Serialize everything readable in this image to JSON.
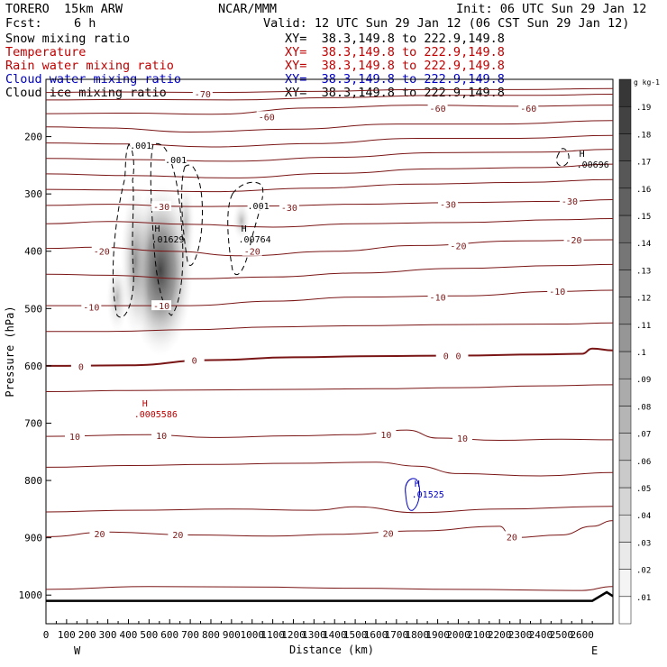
{
  "header": {
    "model": "TORERO  15km ARW",
    "center": "NCAR/MMM",
    "init": "Init: 06 UTC Sun 29 Jan 12",
    "fcst_label": "Fcst:",
    "fcst_value": "6 h",
    "valid": "Valid: 12 UTC Sun 29 Jan 12 (06 CST Sun 29 Jan 12)",
    "fields": [
      {
        "name": "Snow mixing ratio",
        "xy": "XY=  38.3,149.8 to 222.9,149.8",
        "color": "#000000"
      },
      {
        "name": "Temperature",
        "xy": "XY=  38.3,149.8 to 222.9,149.8",
        "color": "#c00000"
      },
      {
        "name": "Rain water mixing ratio",
        "xy": "XY=  38.3,149.8 to 222.9,149.8",
        "color": "#c00000"
      },
      {
        "name": "Cloud water mixing ratio",
        "xy": "XY=  38.3,149.8 to 222.9,149.8",
        "color": "#0000c0"
      },
      {
        "name": "Cloud ice mixing ratio",
        "xy": "XY=  38.3,149.8 to 222.9,149.8",
        "color": "#000000"
      }
    ]
  },
  "colorbar": {
    "unit": "g kg-1",
    "levels": [
      ".01",
      ".02",
      ".03",
      ".04",
      ".05",
      ".06",
      ".07",
      ".08",
      ".09",
      ".1",
      ".11",
      ".12",
      ".13",
      ".14",
      ".15",
      ".16",
      ".17",
      ".18",
      ".19"
    ]
  },
  "chart_data": {
    "type": "contour",
    "xlabel": "Distance (km)",
    "ylabel": "Pressure (hPa)",
    "xlim": [
      0,
      2750
    ],
    "ylim": [
      1050,
      100
    ],
    "x_ticks": [
      0,
      100,
      200,
      300,
      400,
      500,
      600,
      700,
      800,
      900,
      1000,
      1100,
      1200,
      1300,
      1400,
      1500,
      1600,
      1700,
      1800,
      1900,
      2000,
      2100,
      2200,
      2300,
      2400,
      2500,
      2600
    ],
    "y_ticks": [
      200,
      300,
      400,
      500,
      600,
      700,
      800,
      900,
      1000
    ],
    "x_end_labels": {
      "left": "W",
      "right": "E"
    },
    "temperature_contours": [
      {
        "value": -70,
        "points": [
          [
            0,
            123
          ],
          [
            300,
            122
          ],
          [
            800,
            123
          ],
          [
            1300,
            121
          ],
          [
            1800,
            118
          ],
          [
            2300,
            118
          ],
          [
            2750,
            116
          ]
        ]
      },
      {
        "value": -65,
        "points": [
          [
            0,
            136
          ],
          [
            400,
            135
          ],
          [
            900,
            136
          ],
          [
            1400,
            132
          ],
          [
            1900,
            128
          ],
          [
            2400,
            128
          ],
          [
            2750,
            126
          ]
        ]
      },
      {
        "value": -60,
        "points": [
          [
            0,
            160
          ],
          [
            400,
            159
          ],
          [
            800,
            161
          ],
          [
            1300,
            150
          ],
          [
            1800,
            145
          ],
          [
            2300,
            147
          ],
          [
            2750,
            145
          ]
        ]
      },
      {
        "value": -55,
        "points": [
          [
            0,
            183
          ],
          [
            300,
            185
          ],
          [
            700,
            192
          ],
          [
            1200,
            187
          ],
          [
            1700,
            178
          ],
          [
            2200,
            178
          ],
          [
            2750,
            172
          ]
        ]
      },
      {
        "value": -50,
        "points": [
          [
            0,
            211
          ],
          [
            400,
            213
          ],
          [
            800,
            218
          ],
          [
            1300,
            212
          ],
          [
            1800,
            203
          ],
          [
            2300,
            203
          ],
          [
            2750,
            198
          ]
        ]
      },
      {
        "value": -45,
        "points": [
          [
            0,
            238
          ],
          [
            400,
            240
          ],
          [
            900,
            243
          ],
          [
            1400,
            236
          ],
          [
            1900,
            228
          ],
          [
            2400,
            227
          ],
          [
            2750,
            222
          ]
        ]
      },
      {
        "value": -40,
        "points": [
          [
            0,
            265
          ],
          [
            400,
            268
          ],
          [
            900,
            272
          ],
          [
            1400,
            264
          ],
          [
            1900,
            256
          ],
          [
            2400,
            254
          ],
          [
            2750,
            248
          ]
        ]
      },
      {
        "value": -35,
        "points": [
          [
            0,
            292
          ],
          [
            300,
            293
          ],
          [
            800,
            296
          ],
          [
            1300,
            290
          ],
          [
            1800,
            283
          ],
          [
            2300,
            280
          ],
          [
            2750,
            275
          ]
        ]
      },
      {
        "value": -30,
        "points": [
          [
            0,
            320
          ],
          [
            300,
            318
          ],
          [
            700,
            322
          ],
          [
            1100,
            321
          ],
          [
            1500,
            318
          ],
          [
            2000,
            315
          ],
          [
            2500,
            313
          ],
          [
            2750,
            310
          ]
        ]
      },
      {
        "value": -25,
        "points": [
          [
            0,
            352
          ],
          [
            300,
            348
          ],
          [
            700,
            353
          ],
          [
            1100,
            358
          ],
          [
            1500,
            352
          ],
          [
            2000,
            350
          ],
          [
            2500,
            345
          ],
          [
            2750,
            343
          ]
        ]
      },
      {
        "value": -20,
        "points": [
          [
            0,
            395
          ],
          [
            250,
            393
          ],
          [
            600,
            400
          ],
          [
            950,
            408
          ],
          [
            1400,
            400
          ],
          [
            1800,
            390
          ],
          [
            2300,
            382
          ],
          [
            2750,
            380
          ]
        ]
      },
      {
        "value": -15,
        "points": [
          [
            0,
            440
          ],
          [
            300,
            442
          ],
          [
            700,
            448
          ],
          [
            1100,
            445
          ],
          [
            1500,
            438
          ],
          [
            2000,
            430
          ],
          [
            2500,
            425
          ],
          [
            2750,
            423
          ]
        ]
      },
      {
        "value": -10,
        "points": [
          [
            0,
            495
          ],
          [
            300,
            495
          ],
          [
            700,
            495
          ],
          [
            1100,
            487
          ],
          [
            1500,
            480
          ],
          [
            2000,
            478
          ],
          [
            2500,
            470
          ],
          [
            2750,
            468
          ]
        ]
      },
      {
        "value": -5,
        "points": [
          [
            0,
            540
          ],
          [
            300,
            540
          ],
          [
            700,
            537
          ],
          [
            1100,
            532
          ],
          [
            1500,
            530
          ],
          [
            2000,
            528
          ],
          [
            2500,
            527
          ],
          [
            2750,
            525
          ]
        ]
      },
      {
        "value": 0,
        "points": [
          [
            0,
            600
          ],
          [
            400,
            599
          ],
          [
            800,
            590
          ],
          [
            1200,
            585
          ],
          [
            1600,
            583
          ],
          [
            2000,
            582
          ],
          [
            2400,
            580
          ],
          [
            2600,
            579
          ],
          [
            2650,
            570
          ],
          [
            2750,
            573
          ]
        ]
      },
      {
        "value": 5,
        "points": [
          [
            0,
            645
          ],
          [
            400,
            643
          ],
          [
            800,
            642
          ],
          [
            1200,
            641
          ],
          [
            1600,
            640
          ],
          [
            2000,
            638
          ],
          [
            2400,
            635
          ],
          [
            2750,
            633
          ]
        ]
      },
      {
        "value": 10,
        "points": [
          [
            0,
            723
          ],
          [
            500,
            720
          ],
          [
            800,
            725
          ],
          [
            1200,
            722
          ],
          [
            1500,
            720
          ],
          [
            1750,
            712
          ],
          [
            1900,
            726
          ],
          [
            2200,
            730
          ],
          [
            2500,
            728
          ],
          [
            2750,
            729
          ]
        ]
      },
      {
        "value": 15,
        "points": [
          [
            0,
            777
          ],
          [
            400,
            774
          ],
          [
            800,
            772
          ],
          [
            1200,
            770
          ],
          [
            1600,
            768
          ],
          [
            1800,
            775
          ],
          [
            2000,
            788
          ],
          [
            2400,
            792
          ],
          [
            2750,
            786
          ]
        ]
      },
      {
        "value": 20,
        "points": [
          [
            0,
            898
          ],
          [
            300,
            890
          ],
          [
            700,
            895
          ],
          [
            1100,
            897
          ],
          [
            1400,
            894
          ],
          [
            1800,
            888
          ],
          [
            2200,
            880
          ],
          [
            2260,
            900
          ],
          [
            2500,
            895
          ],
          [
            2650,
            880
          ],
          [
            2750,
            870
          ]
        ]
      },
      {
        "value": 22,
        "points": [
          [
            0,
            855
          ],
          [
            400,
            852
          ],
          [
            900,
            850
          ],
          [
            1300,
            852
          ],
          [
            1500,
            846
          ],
          [
            1800,
            856
          ],
          [
            2200,
            850
          ],
          [
            2750,
            845
          ]
        ]
      },
      {
        "value": 25,
        "points": [
          [
            0,
            990
          ],
          [
            500,
            985
          ],
          [
            1000,
            986
          ],
          [
            1500,
            988
          ],
          [
            2000,
            990
          ],
          [
            2600,
            992
          ],
          [
            2750,
            985
          ]
        ]
      }
    ],
    "labels": [
      {
        "text": "-70",
        "x": 760,
        "p": 125
      },
      {
        "text": "-60",
        "x": 1070,
        "p": 165
      },
      {
        "text": "-60",
        "x": 1900,
        "p": 150
      },
      {
        "text": "-60",
        "x": 2340,
        "p": 150
      },
      {
        "text": "-30",
        "x": 560,
        "p": 322
      },
      {
        "text": "-30",
        "x": 1180,
        "p": 323
      },
      {
        "text": "-30",
        "x": 1950,
        "p": 318
      },
      {
        "text": "-30",
        "x": 2540,
        "p": 312
      },
      {
        "text": "-20",
        "x": 270,
        "p": 400
      },
      {
        "text": "-20",
        "x": 1000,
        "p": 400
      },
      {
        "text": "-20",
        "x": 2000,
        "p": 390
      },
      {
        "text": "-20",
        "x": 2560,
        "p": 380
      },
      {
        "text": "-10",
        "x": 220,
        "p": 497
      },
      {
        "text": "-10",
        "x": 560,
        "p": 495
      },
      {
        "text": "-10",
        "x": 1900,
        "p": 480
      },
      {
        "text": "-10",
        "x": 2480,
        "p": 470
      },
      {
        "text": "0",
        "x": 170,
        "p": 601
      },
      {
        "text": "0",
        "x": 720,
        "p": 590
      },
      {
        "text": "0",
        "x": 1940,
        "p": 582
      },
      {
        "text": "0",
        "x": 2000,
        "p": 582
      },
      {
        "text": "10",
        "x": 140,
        "p": 723
      },
      {
        "text": "10",
        "x": 560,
        "p": 721
      },
      {
        "text": "10",
        "x": 1650,
        "p": 720
      },
      {
        "text": "10",
        "x": 2020,
        "p": 726
      },
      {
        "text": "20",
        "x": 260,
        "p": 893
      },
      {
        "text": "20",
        "x": 640,
        "p": 894
      },
      {
        "text": "20",
        "x": 1660,
        "p": 892
      },
      {
        "text": "20",
        "x": 2260,
        "p": 898
      }
    ],
    "highs": [
      {
        "label": "H",
        "value": ".01629",
        "x": 540,
        "p": 375,
        "color": "#000000"
      },
      {
        "label": "H",
        "value": ".00764",
        "x": 960,
        "p": 375,
        "color": "#000000"
      },
      {
        "label": "H",
        "value": ".00696",
        "x": 2600,
        "p": 245,
        "color": "#000000"
      },
      {
        "label": "H",
        "value": ".0005586",
        "x": 480,
        "p": 680,
        "color": "#c00000"
      },
      {
        "label": "H",
        "value": ".01525",
        "x": 1800,
        "p": 820,
        "color": "#0000c0"
      }
    ],
    "dashed_labels": [
      {
        "text": ".001",
        "x": 460,
        "p": 215
      },
      {
        "text": ".001",
        "x": 630,
        "p": 240
      },
      {
        "text": ".001",
        "x": 1030,
        "p": 320
      }
    ],
    "surface_p": 1010,
    "terrain_note": "terrain rises near 2650-2750 km"
  }
}
